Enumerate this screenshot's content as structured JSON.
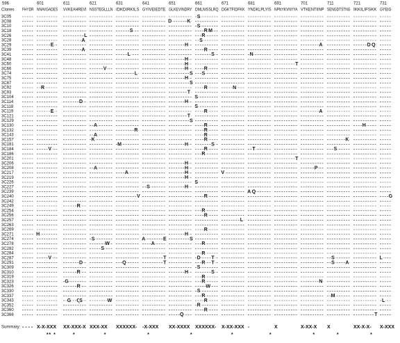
{
  "header": {
    "clones_label": "Clones",
    "positions": [
      596,
      601,
      611,
      621,
      631,
      641,
      651,
      661,
      671,
      681,
      691,
      701,
      711,
      721,
      731
    ],
    "reference": [
      "FHYDR",
      "NNAVGADES",
      "VVKEAHREVI",
      "NSSTEGLLLN",
      "IDKDIRKILS",
      "GYIVEIEDTE",
      "GLKEVINDRY",
      "DMLNISSLRQ",
      "DGKTFIDFKK",
      "YNDKLPLYIS",
      "NPNYKVNYYA",
      "VTKENTIINP",
      "SENGDTSTNG",
      "IKKILIFSKK",
      "GYEIG"
    ]
  },
  "rows": [
    {
      "clone": "3C05",
      "mutations": [
        {
          "pos": 662,
          "aa": "S"
        }
      ]
    },
    {
      "clone": "3C08",
      "mutations": [
        {
          "pos": 651,
          "aa": "D"
        },
        {
          "pos": 659,
          "aa": "K"
        }
      ]
    },
    {
      "clone": "3C10",
      "mutations": [
        {
          "pos": 662,
          "aa": "S"
        }
      ]
    },
    {
      "clone": "3C18",
      "mutations": [
        {
          "pos": 637,
          "aa": "S"
        },
        {
          "pos": 665,
          "aa": "R"
        },
        {
          "pos": 667,
          "aa": "M"
        }
      ]
    },
    {
      "clone": "3C26",
      "mutations": [
        {
          "pos": 620,
          "aa": "L"
        },
        {
          "pos": 664,
          "aa": "R"
        }
      ]
    },
    {
      "clone": "3C28",
      "mutations": [
        {
          "pos": 619,
          "aa": "A"
        },
        {
          "pos": 663,
          "aa": "S"
        }
      ]
    },
    {
      "clone": "3C29",
      "mutations": [
        {
          "pos": 607,
          "aa": "E"
        },
        {
          "pos": 658,
          "aa": "H"
        },
        {
          "pos": 709,
          "aa": "A"
        },
        {
          "pos": 727,
          "aa": "D"
        },
        {
          "pos": 729,
          "aa": "Q"
        }
      ]
    },
    {
      "clone": "3C39",
      "mutations": [
        {
          "pos": 619,
          "aa": "A"
        },
        {
          "pos": 665,
          "aa": "R"
        }
      ]
    },
    {
      "clone": "3C41",
      "mutations": [
        {
          "pos": 636,
          "aa": "L"
        },
        {
          "pos": 668,
          "aa": "S"
        },
        {
          "pos": 682,
          "aa": "N"
        }
      ]
    },
    {
      "clone": "3C48",
      "mutations": [
        {
          "pos": 658,
          "aa": "H"
        }
      ]
    },
    {
      "clone": "3C60",
      "mutations": [
        {
          "pos": 658,
          "aa": "H"
        },
        {
          "pos": 700,
          "aa": "T"
        }
      ]
    },
    {
      "clone": "3C66",
      "mutations": [
        {
          "pos": 627,
          "aa": "V"
        },
        {
          "pos": 658,
          "aa": "H"
        },
        {
          "pos": 665,
          "aa": "R"
        }
      ]
    },
    {
      "clone": "3C74",
      "mutations": [
        {
          "pos": 639,
          "aa": "L"
        },
        {
          "pos": 660,
          "aa": "S"
        },
        {
          "pos": 664,
          "aa": "S"
        }
      ]
    },
    {
      "clone": "3C75",
      "mutations": [
        {
          "pos": 658,
          "aa": "H"
        }
      ]
    },
    {
      "clone": "3C87",
      "mutations": [
        {
          "pos": 660,
          "aa": "S"
        }
      ]
    },
    {
      "clone": "3C92",
      "mutations": [
        {
          "pos": 603,
          "aa": "R"
        },
        {
          "pos": 665,
          "aa": "R"
        },
        {
          "pos": 676,
          "aa": "N"
        }
      ]
    },
    {
      "clone": "3C93",
      "mutations": [
        {
          "pos": 659,
          "aa": "T"
        }
      ]
    },
    {
      "clone": "3C104",
      "mutations": [
        {
          "pos": 661,
          "aa": "S"
        }
      ]
    },
    {
      "clone": "3C114",
      "mutations": [
        {
          "pos": 618,
          "aa": "D"
        },
        {
          "pos": 658,
          "aa": "H"
        }
      ]
    },
    {
      "clone": "3C118",
      "mutations": [
        {
          "pos": 661,
          "aa": "S"
        }
      ]
    },
    {
      "clone": "3C119",
      "mutations": [
        {
          "pos": 607,
          "aa": "E"
        },
        {
          "pos": 665,
          "aa": "R"
        },
        {
          "pos": 709,
          "aa": "A"
        }
      ]
    },
    {
      "clone": "3C121",
      "mutations": [
        {
          "pos": 659,
          "aa": "T"
        }
      ]
    },
    {
      "clone": "3C129",
      "mutations": [
        {
          "pos": 660,
          "aa": "S"
        }
      ]
    },
    {
      "clone": "3C130",
      "mutations": [
        {
          "pos": 623,
          "aa": "A"
        },
        {
          "pos": 665,
          "aa": "R"
        },
        {
          "pos": 725,
          "aa": "H"
        }
      ]
    },
    {
      "clone": "3C132",
      "mutations": [
        {
          "pos": 639,
          "aa": "R"
        },
        {
          "pos": 665,
          "aa": "R"
        }
      ]
    },
    {
      "clone": "3C143",
      "mutations": [
        {
          "pos": 623,
          "aa": "A"
        },
        {
          "pos": 665,
          "aa": "R"
        }
      ]
    },
    {
      "clone": "3C157",
      "mutations": [
        {
          "pos": 622,
          "aa": "K"
        },
        {
          "pos": 665,
          "aa": "R"
        },
        {
          "pos": 719,
          "aa": "K"
        }
      ]
    },
    {
      "clone": "3C181",
      "mutations": [
        {
          "pos": 632,
          "aa": "M"
        },
        {
          "pos": 658,
          "aa": "H"
        },
        {
          "pos": 668,
          "aa": "S"
        }
      ]
    },
    {
      "clone": "3C184",
      "mutations": [
        {
          "pos": 606,
          "aa": "V"
        },
        {
          "pos": 665,
          "aa": "R"
        },
        {
          "pos": 683,
          "aa": "T"
        },
        {
          "pos": 714,
          "aa": "S"
        }
      ]
    },
    {
      "clone": "3C186",
      "mutations": [
        {
          "pos": 664,
          "aa": "R"
        }
      ]
    },
    {
      "clone": "3C201",
      "mutations": [
        {
          "pos": 700,
          "aa": "T"
        }
      ]
    },
    {
      "clone": "3C206",
      "mutations": [
        {
          "pos": 658,
          "aa": "H"
        }
      ]
    },
    {
      "clone": "3C208",
      "mutations": [
        {
          "pos": 623,
          "aa": "A"
        },
        {
          "pos": 658,
          "aa": "H"
        },
        {
          "pos": 707,
          "aa": "P"
        }
      ]
    },
    {
      "clone": "3C217",
      "mutations": [
        {
          "pos": 635,
          "aa": "A"
        },
        {
          "pos": 658,
          "aa": "H"
        },
        {
          "pos": 671,
          "aa": "V"
        }
      ]
    },
    {
      "clone": "3C219",
      "mutations": [
        {
          "pos": 658,
          "aa": "H"
        }
      ]
    },
    {
      "clone": "3C226",
      "mutations": [
        {
          "pos": 661,
          "aa": "S"
        }
      ]
    },
    {
      "clone": "3C227",
      "mutations": [
        {
          "pos": 643,
          "aa": "S"
        },
        {
          "pos": 658,
          "aa": "H"
        }
      ]
    },
    {
      "clone": "3C239",
      "mutations": [
        {
          "pos": 681,
          "aa": "A"
        },
        {
          "pos": 683,
          "aa": "Q"
        }
      ]
    },
    {
      "clone": "3C240",
      "mutations": [
        {
          "pos": 640,
          "aa": "V"
        },
        {
          "pos": 665,
          "aa": "R"
        },
        {
          "pos": 735,
          "aa": "G"
        }
      ]
    },
    {
      "clone": "3C242",
      "mutations": []
    },
    {
      "clone": "3C249",
      "mutations": [
        {
          "pos": 617,
          "aa": "R"
        }
      ]
    },
    {
      "clone": "3C254",
      "mutations": [
        {
          "pos": 664,
          "aa": "R"
        }
      ]
    },
    {
      "clone": "3C256",
      "mutations": [
        {
          "pos": 665,
          "aa": "R"
        }
      ]
    },
    {
      "clone": "3C257",
      "mutations": [
        {
          "pos": 679,
          "aa": "L"
        }
      ]
    },
    {
      "clone": "3C263",
      "mutations": []
    },
    {
      "clone": "3C269",
      "mutations": [
        {
          "pos": 665,
          "aa": "R"
        }
      ]
    },
    {
      "clone": "3C271",
      "mutations": [
        {
          "pos": 601,
          "aa": "H"
        },
        {
          "pos": 658,
          "aa": "H"
        }
      ]
    },
    {
      "clone": "3C274",
      "mutations": [
        {
          "pos": 622,
          "aa": "S"
        },
        {
          "pos": 641,
          "aa": "A"
        },
        {
          "pos": 650,
          "aa": "E"
        },
        {
          "pos": 660,
          "aa": "S"
        }
      ]
    },
    {
      "clone": "3C278",
      "mutations": [
        {
          "pos": 628,
          "aa": "W"
        },
        {
          "pos": 645,
          "aa": "A"
        },
        {
          "pos": 664,
          "aa": "R"
        }
      ]
    },
    {
      "clone": "3C282",
      "mutations": [
        {
          "pos": 626,
          "aa": "S"
        }
      ]
    },
    {
      "clone": "3C284",
      "mutations": [
        {
          "pos": 664,
          "aa": "R"
        }
      ]
    },
    {
      "clone": "3C287",
      "mutations": [
        {
          "pos": 606,
          "aa": "V"
        },
        {
          "pos": 650,
          "aa": "T"
        },
        {
          "pos": 662,
          "aa": "D"
        },
        {
          "pos": 668,
          "aa": "T"
        },
        {
          "pos": 713,
          "aa": "S"
        },
        {
          "pos": 731,
          "aa": "L"
        }
      ]
    },
    {
      "clone": "3C291",
      "mutations": [
        {
          "pos": 618,
          "aa": "D"
        },
        {
          "pos": 634,
          "aa": "Q"
        },
        {
          "pos": 650,
          "aa": "T"
        },
        {
          "pos": 664,
          "aa": "R"
        },
        {
          "pos": 668,
          "aa": "T"
        },
        {
          "pos": 713,
          "aa": "S"
        },
        {
          "pos": 719,
          "aa": "A"
        }
      ]
    },
    {
      "clone": "3C309",
      "mutations": [
        {
          "pos": 662,
          "aa": "S"
        }
      ]
    },
    {
      "clone": "3C310",
      "mutations": [
        {
          "pos": 617,
          "aa": "R"
        },
        {
          "pos": 658,
          "aa": "H"
        },
        {
          "pos": 668,
          "aa": "S"
        }
      ]
    },
    {
      "clone": "3C319",
      "mutations": [
        {
          "pos": 664,
          "aa": "R"
        }
      ]
    },
    {
      "clone": "3C323",
      "mutations": [
        {
          "pos": 612,
          "aa": "G"
        },
        {
          "pos": 664,
          "aa": "R"
        },
        {
          "pos": 709,
          "aa": "N"
        }
      ]
    },
    {
      "clone": "3C326",
      "mutations": [
        {
          "pos": 617,
          "aa": "R"
        },
        {
          "pos": 666,
          "aa": "W"
        }
      ]
    },
    {
      "clone": "3C330",
      "mutations": [
        {
          "pos": 662,
          "aa": "S"
        }
      ]
    },
    {
      "clone": "3C337",
      "mutations": [
        {
          "pos": 664,
          "aa": "R"
        },
        {
          "pos": 713,
          "aa": "M"
        }
      ]
    },
    {
      "clone": "3C343",
      "mutations": [
        {
          "pos": 613,
          "aa": "G"
        },
        {
          "pos": 617,
          "aa": "Q"
        },
        {
          "pos": 618,
          "aa": "S"
        },
        {
          "pos": 629,
          "aa": "W"
        },
        {
          "pos": 665,
          "aa": "R"
        },
        {
          "pos": 732,
          "aa": "L"
        }
      ]
    },
    {
      "clone": "3C352",
      "mutations": [
        {
          "pos": 662,
          "aa": "R"
        }
      ]
    },
    {
      "clone": "3C360",
      "mutations": [
        {
          "pos": 665,
          "aa": "R"
        }
      ]
    },
    {
      "clone": "3C366",
      "mutations": [
        {
          "pos": 656,
          "aa": "Q"
        },
        {
          "pos": 730,
          "aa": "T"
        }
      ]
    }
  ],
  "summary": {
    "label": "Summary:",
    "blocks": [
      "- - - -",
      "X-X-XXX",
      "XX-XXX-X",
      "XXX-XX",
      "XXXXXX-",
      "-X-XXX",
      "XX-XXXX",
      "XXXXXX-",
      "X-XX-XXX",
      "-",
      "X",
      "X-XX-X",
      "X",
      "XX-X-X-",
      "X-XXX"
    ],
    "star": "*",
    "stars": [
      605,
      606,
      608,
      615,
      627,
      643,
      660,
      675,
      690,
      706,
      715,
      728
    ]
  }
}
